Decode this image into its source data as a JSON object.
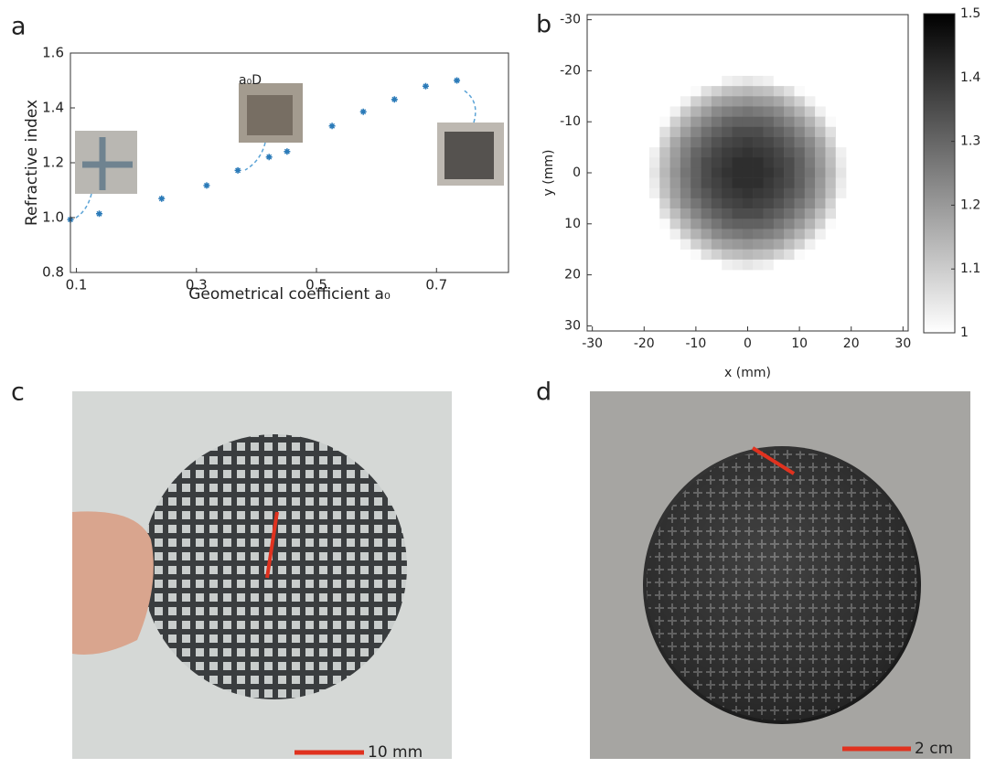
{
  "chart_data": [
    {
      "type": "scatter",
      "panel_label": "a",
      "xlabel": "Geometrical coefficient a₀",
      "ylabel": "Refractive index",
      "annotations": [
        "a₀D"
      ],
      "color": "#2a7ab8",
      "x": [
        0.09,
        0.138,
        0.242,
        0.317,
        0.369,
        0.421,
        0.451,
        0.526,
        0.578,
        0.63,
        0.682,
        0.734
      ],
      "values": [
        0.993,
        1.014,
        1.069,
        1.117,
        1.172,
        1.221,
        1.241,
        1.334,
        1.386,
        1.431,
        1.479,
        1.5
      ],
      "xlim": [
        0.09,
        0.82
      ],
      "ylim": [
        0.8,
        1.6
      ],
      "xticks": [
        0.1,
        0.3,
        0.5,
        0.7
      ],
      "yticks": [
        0.8,
        {
          "value": 1,
          "label": "1.0"
        },
        1.2,
        1.4,
        1.6
      ]
    },
    {
      "type": "heatmap",
      "panel_label": "b",
      "xlabel": "x (mm)",
      "ylabel": "y (mm)",
      "x": [
        -18,
        -16,
        -14,
        -12,
        -10,
        -8,
        -6,
        -4,
        -2,
        0,
        2,
        4,
        6,
        8,
        10,
        12,
        14,
        16,
        18
      ],
      "y": [
        -18,
        -16,
        -14,
        -12,
        -10,
        -8,
        -6,
        -4,
        -2,
        0,
        2,
        4,
        6,
        8,
        10,
        12,
        14,
        16,
        18
      ],
      "z": [
        [
          null,
          null,
          null,
          null,
          null,
          null,
          1.0,
          1.03,
          1.04,
          1.05,
          1.04,
          1.03,
          1.0,
          null,
          null,
          null,
          null,
          null,
          null
        ],
        [
          null,
          null,
          null,
          null,
          1.01,
          1.06,
          1.09,
          1.12,
          1.13,
          1.14,
          1.13,
          1.12,
          1.09,
          1.06,
          1.01,
          null,
          null,
          null,
          null
        ],
        [
          null,
          null,
          null,
          1.03,
          1.09,
          1.13,
          1.17,
          1.19,
          1.2,
          1.21,
          1.2,
          1.19,
          1.17,
          1.13,
          1.09,
          1.03,
          null,
          null,
          null
        ],
        [
          null,
          null,
          1.03,
          1.1,
          1.15,
          1.19,
          1.23,
          1.25,
          1.26,
          1.27,
          1.26,
          1.25,
          1.23,
          1.19,
          1.15,
          1.1,
          1.03,
          null,
          null
        ],
        [
          null,
          1.01,
          1.09,
          1.15,
          1.2,
          1.24,
          1.27,
          1.3,
          1.31,
          1.31,
          1.31,
          1.3,
          1.27,
          1.24,
          1.2,
          1.15,
          1.09,
          1.01,
          null
        ],
        [
          null,
          1.06,
          1.13,
          1.19,
          1.24,
          1.28,
          1.31,
          1.33,
          1.35,
          1.35,
          1.35,
          1.33,
          1.31,
          1.28,
          1.24,
          1.19,
          1.13,
          1.06,
          null
        ],
        [
          1.0,
          1.09,
          1.17,
          1.23,
          1.27,
          1.31,
          1.34,
          1.36,
          1.37,
          1.38,
          1.37,
          1.36,
          1.34,
          1.31,
          1.27,
          1.23,
          1.17,
          1.09,
          1.0
        ],
        [
          1.03,
          1.12,
          1.19,
          1.25,
          1.3,
          1.33,
          1.36,
          1.38,
          1.39,
          1.4,
          1.39,
          1.38,
          1.36,
          1.33,
          1.3,
          1.25,
          1.19,
          1.12,
          1.03
        ],
        [
          1.04,
          1.13,
          1.2,
          1.26,
          1.31,
          1.35,
          1.37,
          1.39,
          1.41,
          1.41,
          1.41,
          1.39,
          1.37,
          1.35,
          1.31,
          1.26,
          1.2,
          1.13,
          1.04
        ],
        [
          1.05,
          1.14,
          1.21,
          1.27,
          1.31,
          1.35,
          1.38,
          1.4,
          1.41,
          1.41,
          1.41,
          1.4,
          1.38,
          1.35,
          1.31,
          1.27,
          1.21,
          1.14,
          1.05
        ],
        [
          1.04,
          1.13,
          1.2,
          1.26,
          1.31,
          1.35,
          1.37,
          1.39,
          1.41,
          1.41,
          1.41,
          1.39,
          1.37,
          1.35,
          1.31,
          1.26,
          1.2,
          1.13,
          1.04
        ],
        [
          1.03,
          1.12,
          1.19,
          1.25,
          1.3,
          1.33,
          1.36,
          1.38,
          1.39,
          1.4,
          1.39,
          1.38,
          1.36,
          1.33,
          1.3,
          1.25,
          1.19,
          1.12,
          1.03
        ],
        [
          1.0,
          1.09,
          1.17,
          1.23,
          1.27,
          1.31,
          1.34,
          1.36,
          1.37,
          1.38,
          1.37,
          1.36,
          1.34,
          1.31,
          1.27,
          1.23,
          1.17,
          1.09,
          1.0
        ],
        [
          null,
          1.06,
          1.13,
          1.19,
          1.24,
          1.28,
          1.31,
          1.33,
          1.35,
          1.35,
          1.35,
          1.33,
          1.31,
          1.28,
          1.24,
          1.19,
          1.13,
          1.06,
          null
        ],
        [
          null,
          1.01,
          1.09,
          1.15,
          1.2,
          1.24,
          1.27,
          1.3,
          1.31,
          1.31,
          1.31,
          1.3,
          1.27,
          1.24,
          1.2,
          1.15,
          1.09,
          1.01,
          null
        ],
        [
          null,
          null,
          1.03,
          1.1,
          1.15,
          1.19,
          1.23,
          1.25,
          1.26,
          1.27,
          1.26,
          1.25,
          1.23,
          1.19,
          1.15,
          1.1,
          1.03,
          null,
          null
        ],
        [
          null,
          null,
          null,
          1.03,
          1.09,
          1.13,
          1.17,
          1.19,
          1.2,
          1.21,
          1.2,
          1.19,
          1.17,
          1.13,
          1.09,
          1.03,
          null,
          null,
          null
        ],
        [
          null,
          null,
          null,
          null,
          1.01,
          1.06,
          1.09,
          1.12,
          1.13,
          1.14,
          1.13,
          1.12,
          1.09,
          1.06,
          1.01,
          null,
          null,
          null,
          null
        ],
        [
          null,
          null,
          null,
          null,
          null,
          null,
          1.0,
          1.03,
          1.04,
          1.05,
          1.04,
          1.03,
          1.0,
          null,
          null,
          null,
          null,
          null,
          null
        ]
      ],
      "xlim": [
        -31,
        31
      ],
      "ylim": [
        -31,
        31
      ],
      "yreverse": true,
      "xticks": [
        -30,
        -20,
        -10,
        0,
        10,
        20,
        30
      ],
      "yticks": [
        -30,
        -20,
        -10,
        0,
        10,
        20,
        30
      ],
      "zlim": [
        1,
        1.5
      ],
      "zticks": [
        1,
        1.1,
        1.2,
        1.3,
        1.4,
        1.5
      ],
      "colormap": [
        "#ffffff",
        "#000000"
      ]
    }
  ],
  "photos": [
    {
      "panel_label": "c",
      "scale_label": "10 mm"
    },
    {
      "panel_label": "d",
      "scale_label": "2 cm"
    }
  ]
}
